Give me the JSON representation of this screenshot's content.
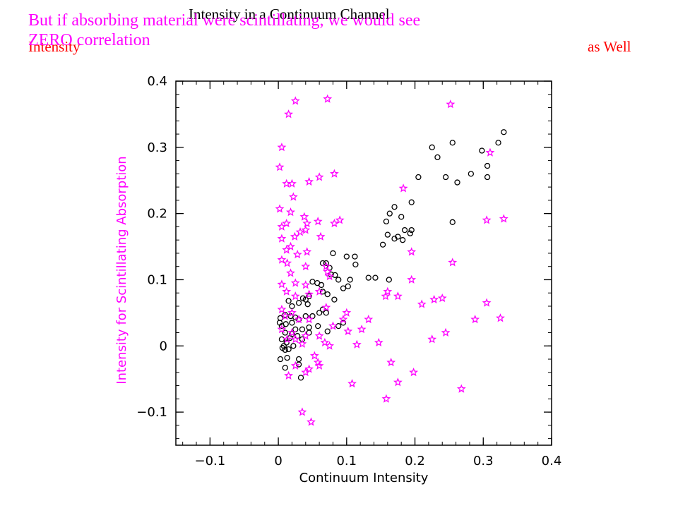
{
  "slide": {
    "title_black": "Intensity in a Continuum Channel",
    "red_fragment_left": "Intensity",
    "red_fragment_right": "as Well",
    "magenta_line1": "But if absorbing material were scintillating, we would see",
    "magenta_line2": "ZERO correlation"
  },
  "colors": {
    "series_continuum": "#000000",
    "series_scintillating": "#ff00ff",
    "title_black": "#000000",
    "fragment_red": "#ff0000",
    "note_magenta": "#ff00ff"
  },
  "chart_data": {
    "type": "scatter",
    "xlabel": "Continuum Intensity",
    "ylabel": "Intensity for Scintillating Absorption",
    "xlim": [
      -0.15,
      0.4
    ],
    "ylim": [
      -0.15,
      0.4
    ],
    "xticks": [
      -0.1,
      0,
      0.1,
      0.2,
      0.3,
      0.4
    ],
    "xtick_labels": [
      "−0.1",
      "0",
      "0.1",
      "0.2",
      "0.3",
      "0.4"
    ],
    "yticks": [
      -0.1,
      0,
      0.1,
      0.2,
      0.3,
      0.4
    ],
    "ytick_labels": [
      "−0.1",
      "0",
      "0.1",
      "0.2",
      "0.3",
      "0.4"
    ],
    "grid": false,
    "series": [
      {
        "marker": "open-circle",
        "color": "#000000",
        "points": [
          [
            0.225,
            0.3
          ],
          [
            0.255,
            0.307
          ],
          [
            0.33,
            0.323
          ],
          [
            0.322,
            0.307
          ],
          [
            0.298,
            0.295
          ],
          [
            0.306,
            0.272
          ],
          [
            0.306,
            0.255
          ],
          [
            0.233,
            0.285
          ],
          [
            0.245,
            0.255
          ],
          [
            0.282,
            0.26
          ],
          [
            0.205,
            0.255
          ],
          [
            0.262,
            0.247
          ],
          [
            0.255,
            0.187
          ],
          [
            0.195,
            0.217
          ],
          [
            0.17,
            0.21
          ],
          [
            0.163,
            0.2
          ],
          [
            0.158,
            0.188
          ],
          [
            0.18,
            0.195
          ],
          [
            0.185,
            0.175
          ],
          [
            0.193,
            0.17
          ],
          [
            0.195,
            0.175
          ],
          [
            0.175,
            0.165
          ],
          [
            0.16,
            0.168
          ],
          [
            0.17,
            0.162
          ],
          [
            0.182,
            0.16
          ],
          [
            0.153,
            0.153
          ],
          [
            0.08,
            0.14
          ],
          [
            0.1,
            0.135
          ],
          [
            0.112,
            0.135
          ],
          [
            0.113,
            0.123
          ],
          [
            0.07,
            0.125
          ],
          [
            0.075,
            0.118
          ],
          [
            0.065,
            0.125
          ],
          [
            0.077,
            0.108
          ],
          [
            0.083,
            0.107
          ],
          [
            0.088,
            0.1
          ],
          [
            0.105,
            0.1
          ],
          [
            0.132,
            0.103
          ],
          [
            0.142,
            0.103
          ],
          [
            0.162,
            0.1
          ],
          [
            0.102,
            0.09
          ],
          [
            0.095,
            0.087
          ],
          [
            0.05,
            0.097
          ],
          [
            0.057,
            0.095
          ],
          [
            0.063,
            0.092
          ],
          [
            0.065,
            0.082
          ],
          [
            0.072,
            0.078
          ],
          [
            0.082,
            0.07
          ],
          [
            0.036,
            0.072
          ],
          [
            0.04,
            0.07
          ],
          [
            0.045,
            0.075
          ],
          [
            0.03,
            0.065
          ],
          [
            0.02,
            0.06
          ],
          [
            0.015,
            0.068
          ],
          [
            0.043,
            0.063
          ],
          [
            0.065,
            0.055
          ],
          [
            0.07,
            0.05
          ],
          [
            0.06,
            0.05
          ],
          [
            0.05,
            0.045
          ],
          [
            0.04,
            0.045
          ],
          [
            0.03,
            0.04
          ],
          [
            0.025,
            0.043
          ],
          [
            0.018,
            0.045
          ],
          [
            0.01,
            0.047
          ],
          [
            0.003,
            0.042
          ],
          [
            0.002,
            0.035
          ],
          [
            0.005,
            0.03
          ],
          [
            0.011,
            0.033
          ],
          [
            0.02,
            0.035
          ],
          [
            0.025,
            0.025
          ],
          [
            0.035,
            0.025
          ],
          [
            0.045,
            0.028
          ],
          [
            0.058,
            0.03
          ],
          [
            0.072,
            0.022
          ],
          [
            0.088,
            0.03
          ],
          [
            0.095,
            0.035
          ],
          [
            0.01,
            0.02
          ],
          [
            0.02,
            0.018
          ],
          [
            0.028,
            0.015
          ],
          [
            0.035,
            0.01
          ],
          [
            0.045,
            0.02
          ],
          [
            0.005,
            0.01
          ],
          [
            0.012,
            0.005
          ],
          [
            0.022,
            0.0
          ],
          [
            0.006,
            -0.003
          ],
          [
            0.01,
            -0.006
          ],
          [
            0.015,
            -0.005
          ],
          [
            0.003,
            -0.02
          ],
          [
            0.013,
            -0.018
          ],
          [
            0.03,
            -0.02
          ],
          [
            0.01,
            -0.033
          ],
          [
            0.03,
            -0.028
          ],
          [
            0.033,
            -0.048
          ],
          [
            0.008,
            0.0
          ],
          [
            0.017,
            0.012
          ]
        ]
      },
      {
        "marker": "open-star",
        "color": "#ff00ff",
        "points": [
          [
            0.072,
            0.373
          ],
          [
            0.025,
            0.37
          ],
          [
            0.252,
            0.365
          ],
          [
            0.015,
            0.35
          ],
          [
            0.005,
            0.3
          ],
          [
            0.31,
            0.292
          ],
          [
            0.002,
            0.27
          ],
          [
            0.082,
            0.26
          ],
          [
            0.06,
            0.255
          ],
          [
            0.045,
            0.248
          ],
          [
            0.012,
            0.245
          ],
          [
            0.02,
            0.245
          ],
          [
            0.183,
            0.238
          ],
          [
            0.022,
            0.225
          ],
          [
            0.002,
            0.207
          ],
          [
            0.018,
            0.202
          ],
          [
            0.038,
            0.195
          ],
          [
            0.33,
            0.192
          ],
          [
            0.305,
            0.19
          ],
          [
            0.042,
            0.185
          ],
          [
            0.012,
            0.185
          ],
          [
            0.058,
            0.188
          ],
          [
            0.005,
            0.18
          ],
          [
            0.09,
            0.19
          ],
          [
            0.082,
            0.185
          ],
          [
            0.032,
            0.172
          ],
          [
            0.04,
            0.175
          ],
          [
            0.062,
            0.165
          ],
          [
            0.005,
            0.162
          ],
          [
            0.024,
            0.165
          ],
          [
            0.012,
            0.145
          ],
          [
            0.018,
            0.15
          ],
          [
            0.042,
            0.142
          ],
          [
            0.028,
            0.138
          ],
          [
            0.005,
            0.13
          ],
          [
            0.195,
            0.142
          ],
          [
            0.07,
            0.12
          ],
          [
            0.013,
            0.125
          ],
          [
            0.04,
            0.12
          ],
          [
            0.018,
            0.11
          ],
          [
            0.075,
            0.105
          ],
          [
            0.025,
            0.095
          ],
          [
            0.005,
            0.093
          ],
          [
            0.04,
            0.092
          ],
          [
            0.255,
            0.126
          ],
          [
            0.072,
            0.112
          ],
          [
            0.012,
            0.082
          ],
          [
            0.045,
            0.078
          ],
          [
            0.025,
            0.075
          ],
          [
            0.06,
            0.082
          ],
          [
            0.16,
            0.082
          ],
          [
            0.157,
            0.075
          ],
          [
            0.175,
            0.075
          ],
          [
            0.195,
            0.1
          ],
          [
            0.24,
            0.072
          ],
          [
            0.228,
            0.07
          ],
          [
            0.305,
            0.065
          ],
          [
            0.21,
            0.063
          ],
          [
            0.07,
            0.058
          ],
          [
            0.1,
            0.05
          ],
          [
            0.095,
            0.04
          ],
          [
            0.132,
            0.04
          ],
          [
            0.005,
            0.055
          ],
          [
            0.01,
            0.045
          ],
          [
            0.02,
            0.05
          ],
          [
            0.03,
            0.04
          ],
          [
            0.045,
            0.04
          ],
          [
            0.08,
            0.03
          ],
          [
            0.06,
            0.015
          ],
          [
            0.288,
            0.04
          ],
          [
            0.325,
            0.042
          ],
          [
            0.102,
            0.022
          ],
          [
            0.245,
            0.02
          ],
          [
            0.122,
            0.025
          ],
          [
            0.005,
            0.025
          ],
          [
            0.02,
            0.02
          ],
          [
            0.025,
            0.01
          ],
          [
            0.04,
            0.015
          ],
          [
            0.068,
            0.005
          ],
          [
            0.075,
            0.0
          ],
          [
            0.115,
            0.002
          ],
          [
            0.147,
            0.005
          ],
          [
            0.225,
            0.01
          ],
          [
            0.013,
            0.01
          ],
          [
            0.035,
            0.003
          ],
          [
            0.053,
            -0.015
          ],
          [
            0.058,
            -0.025
          ],
          [
            0.165,
            -0.025
          ],
          [
            0.06,
            -0.03
          ],
          [
            0.025,
            -0.03
          ],
          [
            0.045,
            -0.035
          ],
          [
            0.04,
            -0.04
          ],
          [
            0.015,
            -0.045
          ],
          [
            0.198,
            -0.04
          ],
          [
            0.175,
            -0.055
          ],
          [
            0.108,
            -0.057
          ],
          [
            0.268,
            -0.065
          ],
          [
            0.158,
            -0.08
          ],
          [
            0.035,
            -0.1
          ],
          [
            0.048,
            -0.115
          ]
        ]
      }
    ]
  }
}
